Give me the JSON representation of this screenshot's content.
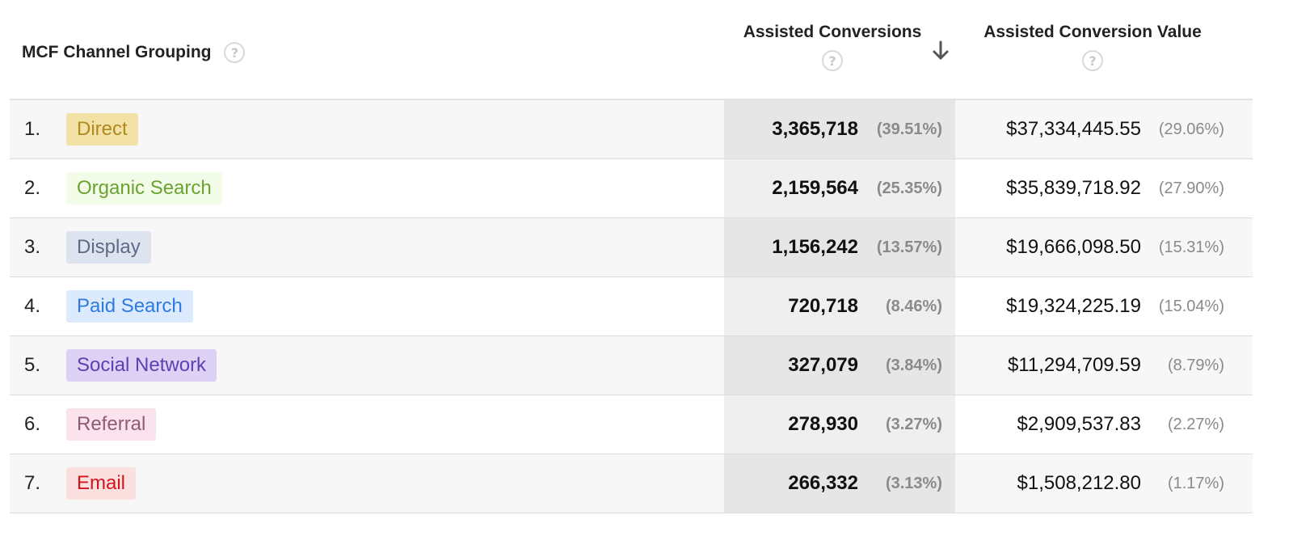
{
  "header": {
    "channel_label": "MCF Channel Grouping",
    "assisted_conversions_label": "Assisted Conversions",
    "assisted_value_label": "Assisted Conversion Value",
    "help_glyph": "?",
    "sort_icon": "arrow-down-icon"
  },
  "colors": {
    "row_odd": "#f7f7f7",
    "row_even": "#ffffff",
    "sorted_column_odd": "#e6e6e6",
    "sorted_column_even": "#efefef"
  },
  "rows": [
    {
      "index": "1.",
      "channel": "Direct",
      "chip_bg": "#f3e2a6",
      "chip_fg": "#b0891f",
      "assisted_conversions": "3,365,718",
      "assisted_conversions_pct": "(39.51%)",
      "assisted_value": "$37,334,445.55",
      "assisted_value_pct": "(29.06%)"
    },
    {
      "index": "2.",
      "channel": "Organic Search",
      "chip_bg": "#f3fbe9",
      "chip_fg": "#6aa331",
      "assisted_conversions": "2,159,564",
      "assisted_conversions_pct": "(25.35%)",
      "assisted_value": "$35,839,718.92",
      "assisted_value_pct": "(27.90%)"
    },
    {
      "index": "3.",
      "channel": "Display",
      "chip_bg": "#dde3ef",
      "chip_fg": "#5c6b85",
      "assisted_conversions": "1,156,242",
      "assisted_conversions_pct": "(13.57%)",
      "assisted_value": "$19,666,098.50",
      "assisted_value_pct": "(15.31%)"
    },
    {
      "index": "4.",
      "channel": "Paid Search",
      "chip_bg": "#dbeafc",
      "chip_fg": "#2f7ae0",
      "assisted_conversions": "720,718",
      "assisted_conversions_pct": "(8.46%)",
      "assisted_value": "$19,324,225.19",
      "assisted_value_pct": "(15.04%)"
    },
    {
      "index": "5.",
      "channel": "Social Network",
      "chip_bg": "#ddd2f6",
      "chip_fg": "#5b3fb3",
      "assisted_conversions": "327,079",
      "assisted_conversions_pct": "(3.84%)",
      "assisted_value": "$11,294,709.59",
      "assisted_value_pct": "(8.79%)"
    },
    {
      "index": "6.",
      "channel": "Referral",
      "chip_bg": "#fbe3ee",
      "chip_fg": "#8f5b6f",
      "assisted_conversions": "278,930",
      "assisted_conversions_pct": "(3.27%)",
      "assisted_value": "$2,909,537.83",
      "assisted_value_pct": "(2.27%)"
    },
    {
      "index": "7.",
      "channel": "Email",
      "chip_bg": "#fbe0e0",
      "chip_fg": "#d3141c",
      "assisted_conversions": "266,332",
      "assisted_conversions_pct": "(3.13%)",
      "assisted_value": "$1,508,212.80",
      "assisted_value_pct": "(1.17%)"
    }
  ]
}
